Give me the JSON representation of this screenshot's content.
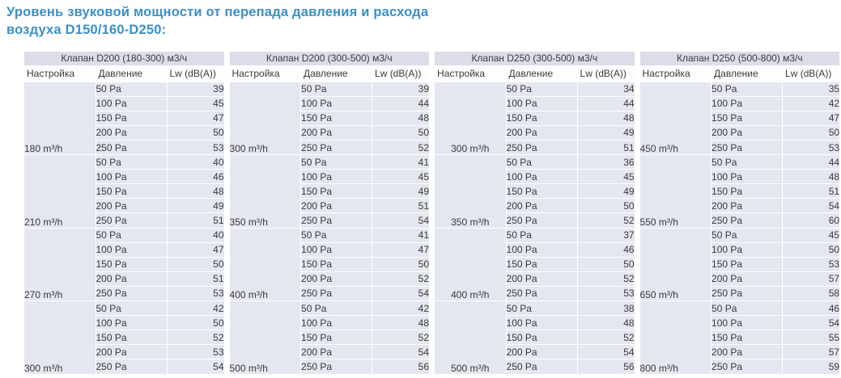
{
  "title": {
    "line1": "Уровень звуковой мощности от перепада давления и расхода",
    "line2": "воздуха D150/160-D250:",
    "color": "#3b8fc6"
  },
  "columns": {
    "setting": "Настройка",
    "pressure": "Давление",
    "lw": "Lw (dB(A))"
  },
  "pressures": [
    "50 Pa",
    "100 Pa",
    "150 Pa",
    "200 Pa",
    "250 Pa"
  ],
  "tables": [
    {
      "header": "Клапан D200 (180-300) м3/ч",
      "setting_align": "left",
      "groups": [
        {
          "setting": "180 m³/h",
          "values": [
            39,
            45,
            47,
            50,
            53
          ]
        },
        {
          "setting": "210 m³/h",
          "values": [
            40,
            46,
            48,
            49,
            51
          ]
        },
        {
          "setting": "270 m³/h",
          "values": [
            40,
            47,
            50,
            51,
            53
          ]
        },
        {
          "setting": "300 m³/h",
          "values": [
            42,
            50,
            52,
            53,
            54
          ]
        }
      ]
    },
    {
      "header": "Клапан D200 (300-500) м3/ч",
      "setting_align": "left",
      "groups": [
        {
          "setting": "300 m³/h",
          "values": [
            39,
            44,
            48,
            50,
            52
          ]
        },
        {
          "setting": "350 m³/h",
          "values": [
            41,
            45,
            49,
            51,
            54
          ]
        },
        {
          "setting": "400 m³/h",
          "values": [
            41,
            47,
            50,
            52,
            54
          ]
        },
        {
          "setting": "500 m³/h",
          "values": [
            42,
            48,
            52,
            54,
            56
          ]
        }
      ]
    },
    {
      "header": "Клапан D250 (300-500) м3/ч",
      "setting_align": "center",
      "groups": [
        {
          "setting": "300 m³/h",
          "values": [
            34,
            44,
            48,
            49,
            51
          ]
        },
        {
          "setting": "350 m³/h",
          "values": [
            36,
            45,
            49,
            50,
            52
          ]
        },
        {
          "setting": "400 m³/h",
          "values": [
            37,
            46,
            50,
            52,
            53
          ]
        },
        {
          "setting": "500 m³/h",
          "values": [
            38,
            48,
            52,
            54,
            56
          ]
        }
      ]
    },
    {
      "header": "Клапан D250 (500-800) м3/ч",
      "setting_align": "left",
      "groups": [
        {
          "setting": "450 m³/h",
          "values": [
            35,
            42,
            47,
            50,
            53
          ]
        },
        {
          "setting": "550 m³/h",
          "values": [
            44,
            48,
            51,
            54,
            60
          ]
        },
        {
          "setting": "650 m³/h",
          "values": [
            45,
            50,
            53,
            57,
            58
          ]
        },
        {
          "setting": "800 m³/h",
          "values": [
            46,
            54,
            55,
            57,
            59
          ]
        }
      ]
    }
  ],
  "style": {
    "table_header_bg": "#dbdde9",
    "cell_bg": "#e4e6f0",
    "colhead_bg": "#fdfdfe",
    "text_color": "#3a3a3a"
  }
}
